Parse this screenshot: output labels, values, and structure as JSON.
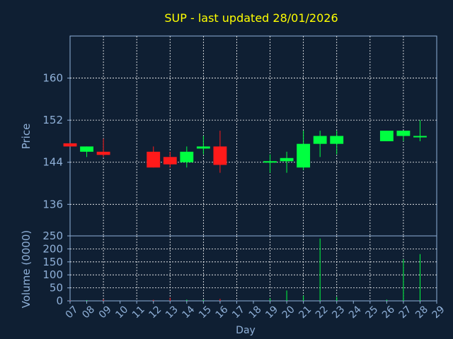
{
  "chart_data": [
    {
      "type": "candlestick",
      "title": "SUP - last updated 28/01/2026",
      "ylabel": "Price",
      "xlabel": "",
      "ylim": [
        130,
        168
      ],
      "yticks": [
        136,
        144,
        152,
        160
      ],
      "grid": true,
      "colors": {
        "up": "#00ff40",
        "down": "#ff1a1a",
        "grid": "#ffffff",
        "axis": "#8fb0d8",
        "title": "#ffff00",
        "background": "#0f1f33"
      },
      "candles": [
        {
          "day": "07",
          "open": 147.6,
          "high": 147.6,
          "low": 147.0,
          "close": 147.0
        },
        {
          "day": "08",
          "open": 146.0,
          "high": 147.0,
          "low": 145.0,
          "close": 147.0
        },
        {
          "day": "09",
          "open": 146.0,
          "high": 148.5,
          "low": 145.0,
          "close": 145.4
        },
        {
          "day": "12",
          "open": 146.0,
          "high": 147.0,
          "low": 143.0,
          "close": 143.0
        },
        {
          "day": "13",
          "open": 145.0,
          "high": 146.0,
          "low": 143.0,
          "close": 143.6
        },
        {
          "day": "14",
          "open": 144.0,
          "high": 147.0,
          "low": 143.0,
          "close": 146.0
        },
        {
          "day": "15",
          "open": 146.6,
          "high": 149.0,
          "low": 145.5,
          "close": 147.0
        },
        {
          "day": "16",
          "open": 147.0,
          "high": 150.0,
          "low": 142.0,
          "close": 143.5
        },
        {
          "day": "19",
          "open": 144.0,
          "high": 145.5,
          "low": 142.0,
          "close": 144.2
        },
        {
          "day": "20",
          "open": 144.2,
          "high": 146.0,
          "low": 142.0,
          "close": 144.8
        },
        {
          "day": "21",
          "open": 143.0,
          "high": 150.0,
          "low": 142.5,
          "close": 147.5
        },
        {
          "day": "22",
          "open": 147.5,
          "high": 150.0,
          "low": 145.0,
          "close": 149.0
        },
        {
          "day": "23",
          "open": 147.5,
          "high": 150.0,
          "low": 145.5,
          "close": 149.0
        },
        {
          "day": "26",
          "open": 148.0,
          "high": 150.0,
          "low": 148.0,
          "close": 150.0
        },
        {
          "day": "27",
          "open": 149.0,
          "high": 150.0,
          "low": 148.0,
          "close": 150.0
        },
        {
          "day": "28",
          "open": 148.8,
          "high": 152.0,
          "low": 148.0,
          "close": 149.0
        }
      ]
    },
    {
      "type": "bar",
      "ylabel": "Volume (0000)",
      "xlabel": "Day",
      "ylim": [
        0,
        250
      ],
      "yticks": [
        0,
        50,
        100,
        150,
        200,
        250
      ],
      "grid": true,
      "categories": [
        "07",
        "08",
        "09",
        "10",
        "11",
        "12",
        "13",
        "14",
        "15",
        "16",
        "17",
        "18",
        "19",
        "20",
        "21",
        "22",
        "23",
        "24",
        "25",
        "26",
        "27",
        "28",
        "29"
      ],
      "bars": [
        {
          "day": "07",
          "value": 2,
          "color": "#ff1a1a"
        },
        {
          "day": "08",
          "value": 3,
          "color": "#00ff40"
        },
        {
          "day": "09",
          "value": 6,
          "color": "#ff1a1a"
        },
        {
          "day": "12",
          "value": 4,
          "color": "#ff1a1a"
        },
        {
          "day": "13",
          "value": 12,
          "color": "#ff1a1a"
        },
        {
          "day": "14",
          "value": 5,
          "color": "#00ff40"
        },
        {
          "day": "15",
          "value": 4,
          "color": "#00ff40"
        },
        {
          "day": "16",
          "value": 8,
          "color": "#ff1a1a"
        },
        {
          "day": "19",
          "value": 10,
          "color": "#00ff40"
        },
        {
          "day": "20",
          "value": 40,
          "color": "#00ff40"
        },
        {
          "day": "21",
          "value": 20,
          "color": "#00ff40"
        },
        {
          "day": "22",
          "value": 240,
          "color": "#00ff40"
        },
        {
          "day": "23",
          "value": 15,
          "color": "#00ff40"
        },
        {
          "day": "26",
          "value": 5,
          "color": "#00ff40"
        },
        {
          "day": "27",
          "value": 160,
          "color": "#00ff40"
        },
        {
          "day": "28",
          "value": 180,
          "color": "#00ff40"
        }
      ]
    }
  ]
}
